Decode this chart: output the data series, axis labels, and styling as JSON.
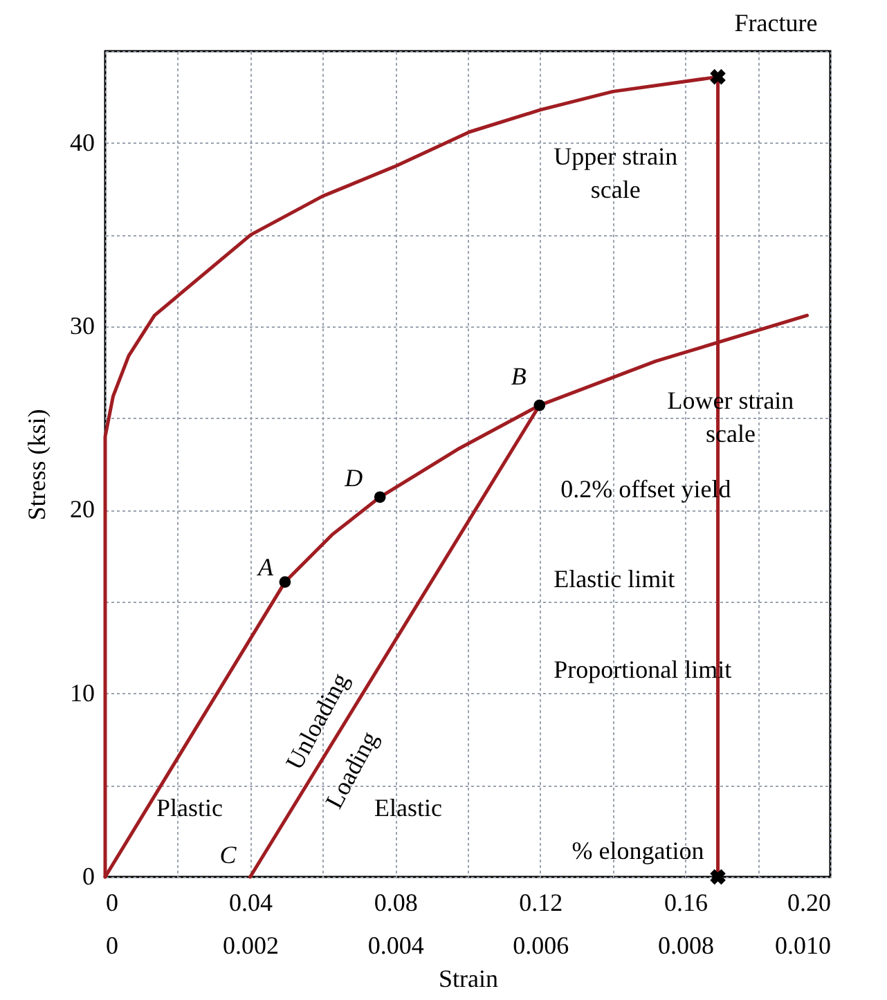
{
  "chart_data": {
    "type": "line",
    "xlabel": "Strain",
    "ylabel": "Stress (ksi)",
    "xlim": [
      0,
      0.2
    ],
    "xticks": [
      0,
      {
        "value": 0.02,
        "label": null
      },
      0.04,
      {
        "value": 0.06,
        "label": null
      },
      0.08,
      {
        "value": 0.1,
        "label": null
      },
      0.12,
      {
        "value": 0.14,
        "label": null
      },
      0.16,
      {
        "value": 0.18,
        "label": null
      },
      {
        "value": 0.2,
        "label": "0.20"
      }
    ],
    "x2lim": [
      0,
      0.01
    ],
    "x2ticks": [
      0,
      0.002,
      0.004,
      0.006,
      0.008,
      {
        "value": 0.01,
        "label": "0.010"
      }
    ],
    "ylim": [
      0,
      45
    ],
    "yticks": [
      0,
      {
        "value": 5,
        "label": null
      },
      10,
      {
        "value": 15,
        "label": null
      },
      20,
      {
        "value": 25,
        "label": null
      },
      30,
      {
        "value": 35,
        "label": null
      },
      40,
      {
        "value": 45,
        "label": null
      }
    ],
    "grid": true,
    "line_style": "solid",
    "series": [
      {
        "color": "#a01d22",
        "x": [
          0,
          0,
          0.0022,
          0.0065,
          0.0136,
          0.0402,
          0.06,
          0.0797,
          0.1005,
          0.12,
          0.14,
          0.169
        ],
        "values": [
          0,
          24,
          26.2,
          28.4,
          30.6,
          35.0,
          37.1,
          38.7,
          40.6,
          41.8,
          42.8,
          43.6
        ]
      },
      {
        "color": "#a01d22",
        "x": [
          0.169,
          0.169
        ],
        "values": [
          0,
          43.6
        ]
      },
      {
        "type": "scatter",
        "marker": "cross",
        "color": "#000000",
        "x": [
          0.169,
          0.169
        ],
        "values": [
          43.6,
          0
        ]
      },
      {
        "axis": "x2",
        "color": "#a01d22",
        "x": [
          0,
          0.00248,
          0.00313,
          0.00379,
          0.00486,
          0.00599,
          0.00759,
          0.00968
        ],
        "values": [
          0,
          16.07,
          18.65,
          20.7,
          23.3,
          25.7,
          28.1,
          30.6
        ]
      },
      {
        "axis": "x2",
        "color": "#a01d22",
        "x": [
          0.002,
          0.00599
        ],
        "values": [
          0,
          25.7
        ]
      },
      {
        "type": "scatter",
        "axis": "x2",
        "marker": "circle",
        "color": "#000000",
        "x": [
          0.00248,
          0.00379,
          0.00599
        ],
        "values": [
          16.07,
          20.7,
          25.7
        ]
      }
    ],
    "annotations": [
      {
        "text": "Fracture",
        "x": 0.169,
        "y": 43.6
      },
      "Upper strain scale",
      "Lower strain scale",
      {
        "text": "B",
        "x": 0.1198,
        "y": 25.7
      },
      {
        "text": "D",
        "x": 0.0758,
        "y": 20.7
      },
      {
        "text": "A",
        "x": 0.0496,
        "y": 16.07
      },
      {
        "text": "C",
        "x": 0.04,
        "y": 0
      },
      "0.2% offset yield",
      "Elastic limit",
      "Proportional limit",
      "Unloading",
      "Loading",
      "Plastic",
      "Elastic",
      {
        "text": "% elongation",
        "x": 0.169,
        "y": 0
      }
    ]
  }
}
